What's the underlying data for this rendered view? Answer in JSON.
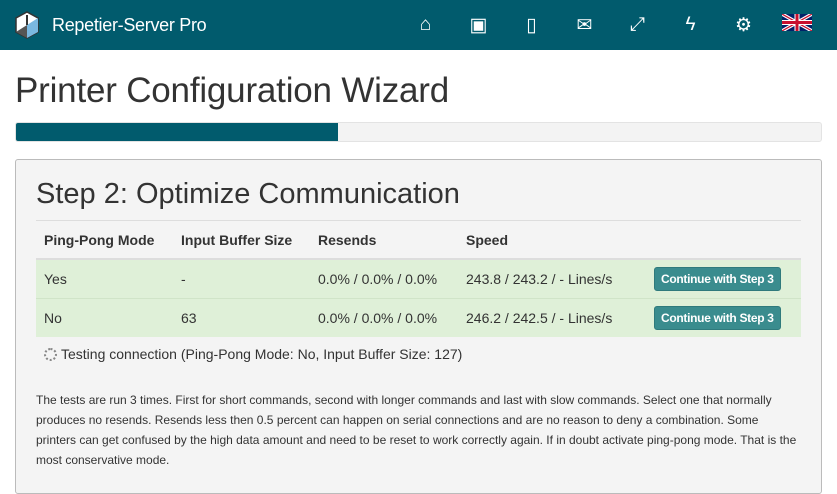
{
  "header": {
    "brand": "Repetier-Server Pro",
    "icons": [
      "home-icon",
      "archive-icon",
      "tablet-icon",
      "envelope-icon",
      "expand-icon",
      "bolt-icon",
      "gear-icon",
      "uk-flag-icon"
    ]
  },
  "page": {
    "title": "Printer Configuration Wizard",
    "progress_percent": 40
  },
  "step": {
    "title": "Step 2: Optimize Communication",
    "columns": [
      "Ping-Pong Mode",
      "Input Buffer Size",
      "Resends",
      "Speed"
    ],
    "rows": [
      {
        "mode": "Yes",
        "buffer": "-",
        "resends": "0.0% / 0.0% / 0.0%",
        "speed": "243.8 / 243.2 / - Lines/s",
        "action": "Continue with Step 3"
      },
      {
        "mode": "No",
        "buffer": "63",
        "resends": "0.0% / 0.0% / 0.0%",
        "speed": "246.2 / 242.5 / - Lines/s",
        "action": "Continue with Step 3"
      }
    ],
    "testing": "Testing connection (Ping-Pong Mode: No, Input Buffer Size: 127)",
    "note": "The tests are run 3 times. First for short commands, second with longer commands and last with slow commands. Select one that normally produces no resends. Resends less then 0.5 percent can happen on serial connections and are no reason to deny a combination. Some printers can get confused by the high data amount and need to be reset to work correctly again. If in doubt activate ping-pong mode. That is the most conservative mode."
  }
}
